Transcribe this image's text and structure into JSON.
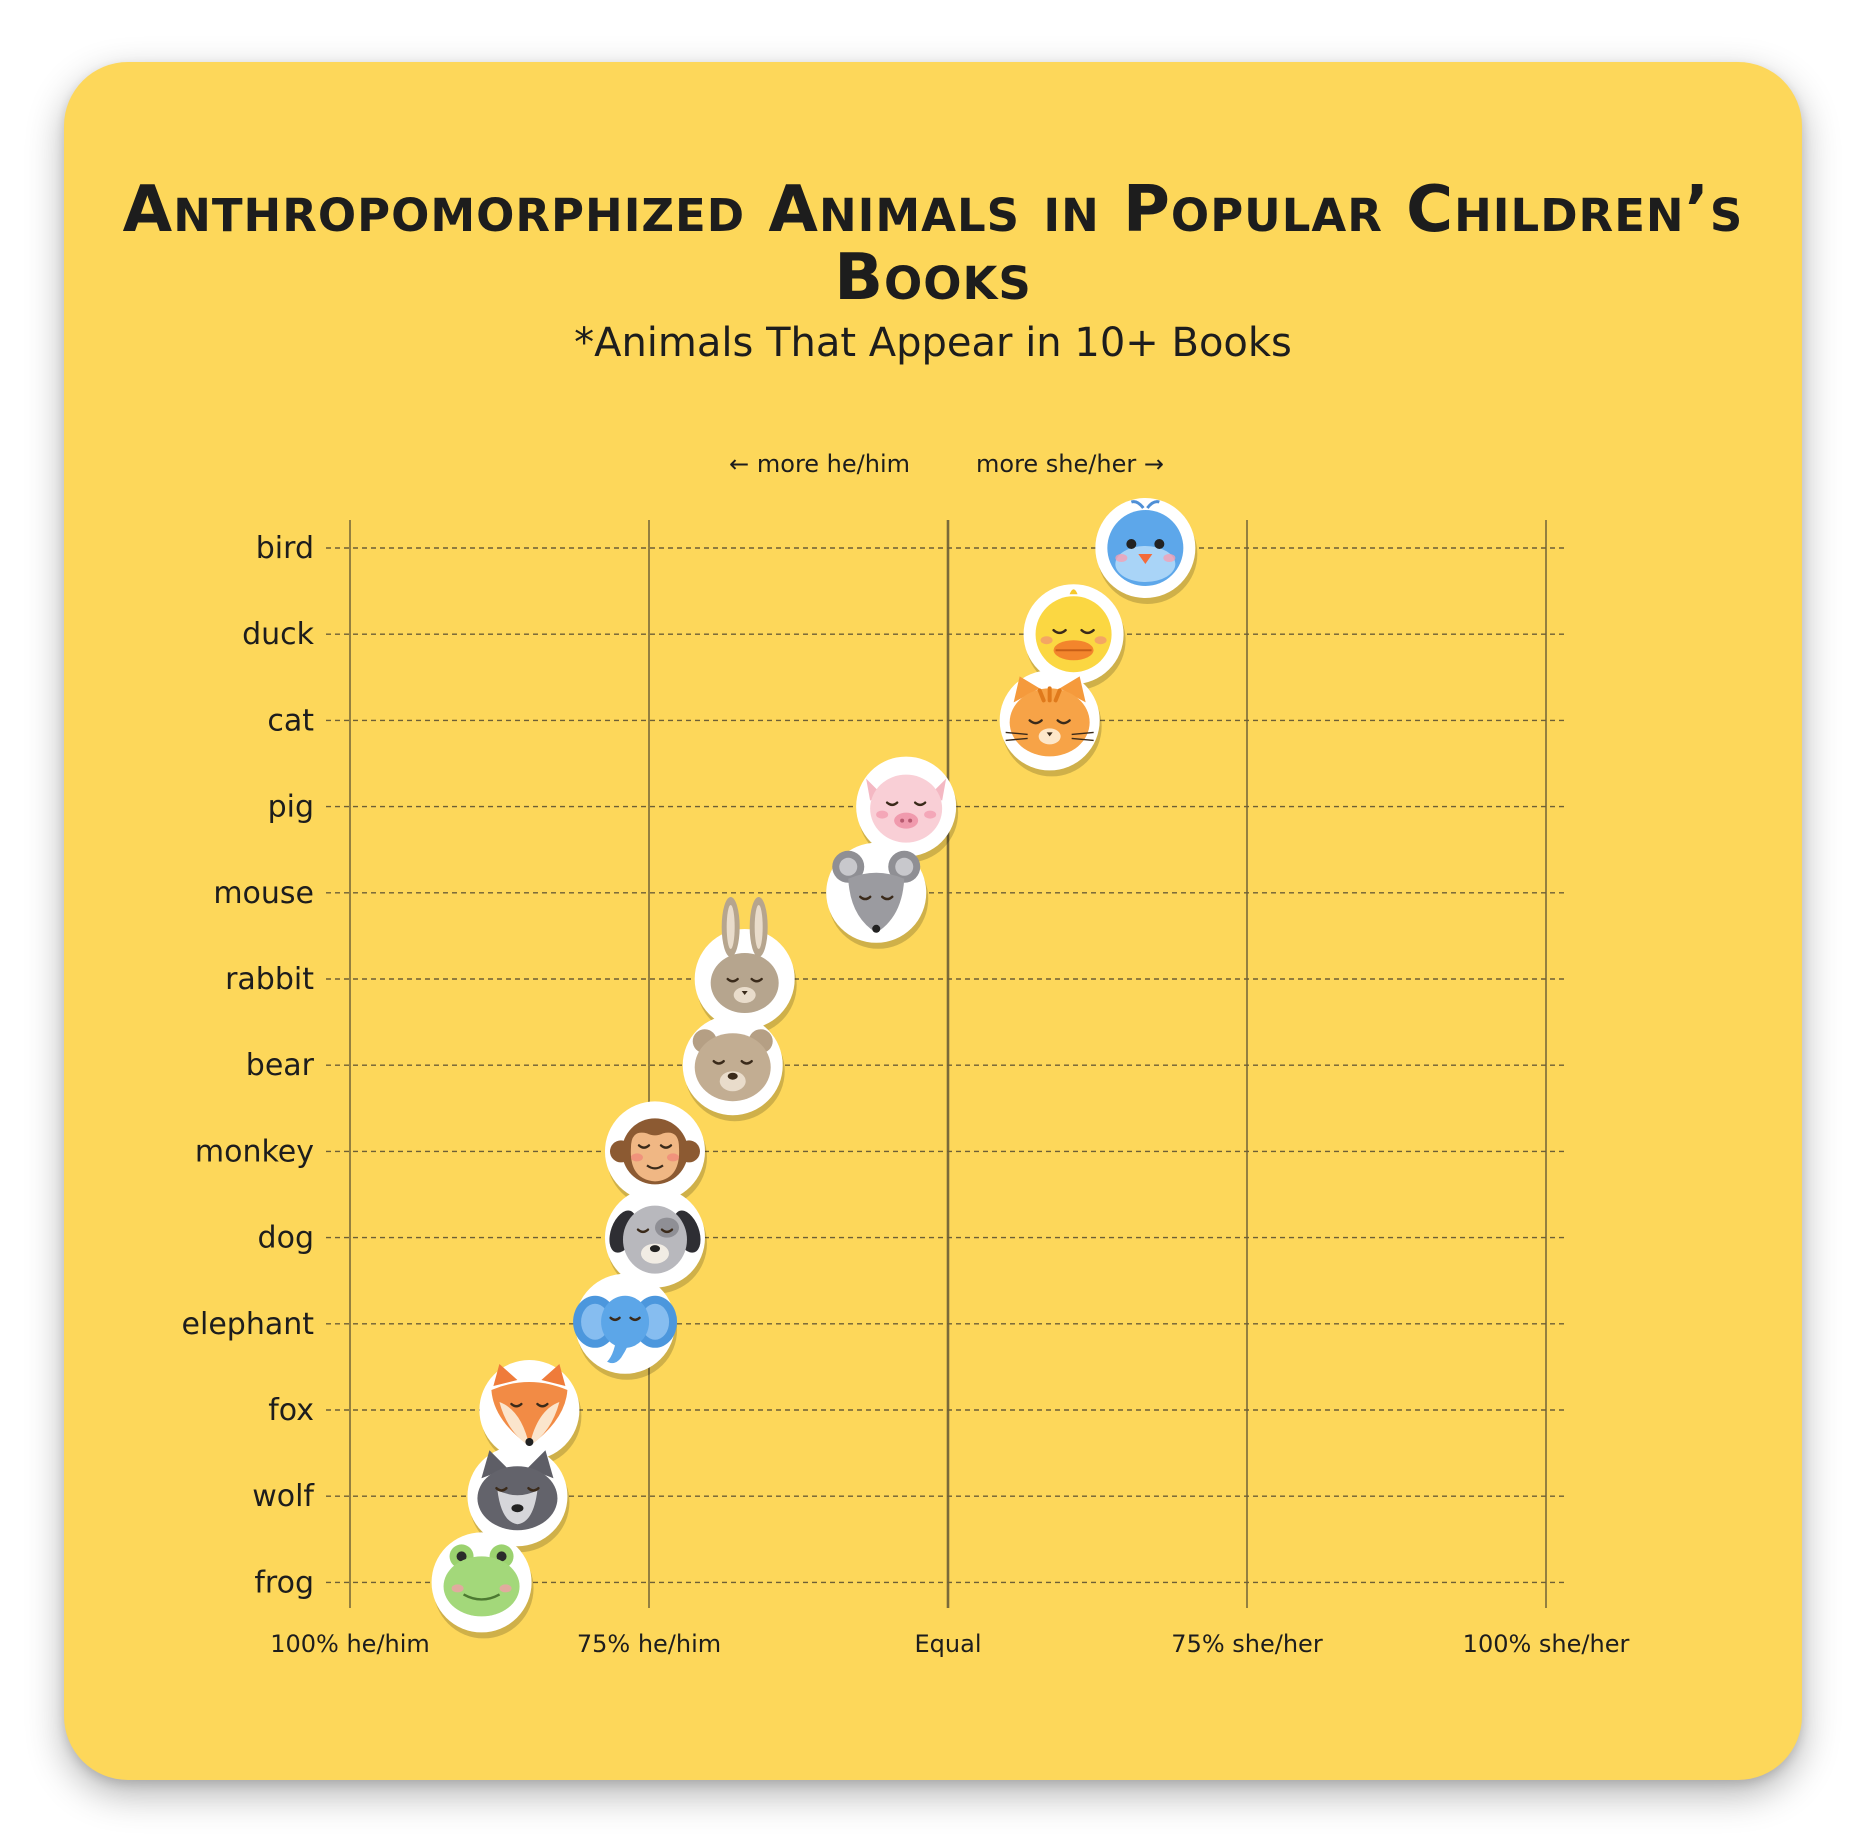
{
  "chart_data": {
    "type": "scatter",
    "title": "Anthropomorphized Animals in Popular Children’s Books",
    "subtitle": "*Animals That Appear in 10+ Books",
    "direction_labels": {
      "left": "← more he/him",
      "right": "more she/her →"
    },
    "x_tick_labels": [
      "100% he/him",
      "75% he/him",
      "Equal",
      "75% she/her",
      "100% she/her"
    ],
    "x_tick_values": [
      -100,
      -50,
      0,
      50,
      100
    ],
    "xlim": [
      -100,
      100
    ],
    "xlabel": "",
    "ylabel": "",
    "grid": true,
    "categories": [
      "bird",
      "duck",
      "cat",
      "pig",
      "mouse",
      "rabbit",
      "bear",
      "monkey",
      "dog",
      "elephant",
      "fox",
      "wolf",
      "frog"
    ],
    "values": [
      33,
      21,
      17,
      -7,
      -12,
      -34,
      -36,
      -49,
      -49,
      -54,
      -70,
      -72,
      -78
    ],
    "marker_icons": [
      "bird-icon",
      "duck-icon",
      "cat-icon",
      "pig-icon",
      "mouse-icon",
      "rabbit-icon",
      "bear-icon",
      "monkey-icon",
      "dog-icon",
      "elephant-icon",
      "fox-icon",
      "wolf-icon",
      "frog-icon"
    ]
  },
  "colors": {
    "background": "#FDD75A",
    "text": "#1d1d1d",
    "axis_line": "#7a6a3a",
    "grid_dash": "#6d5f36"
  }
}
